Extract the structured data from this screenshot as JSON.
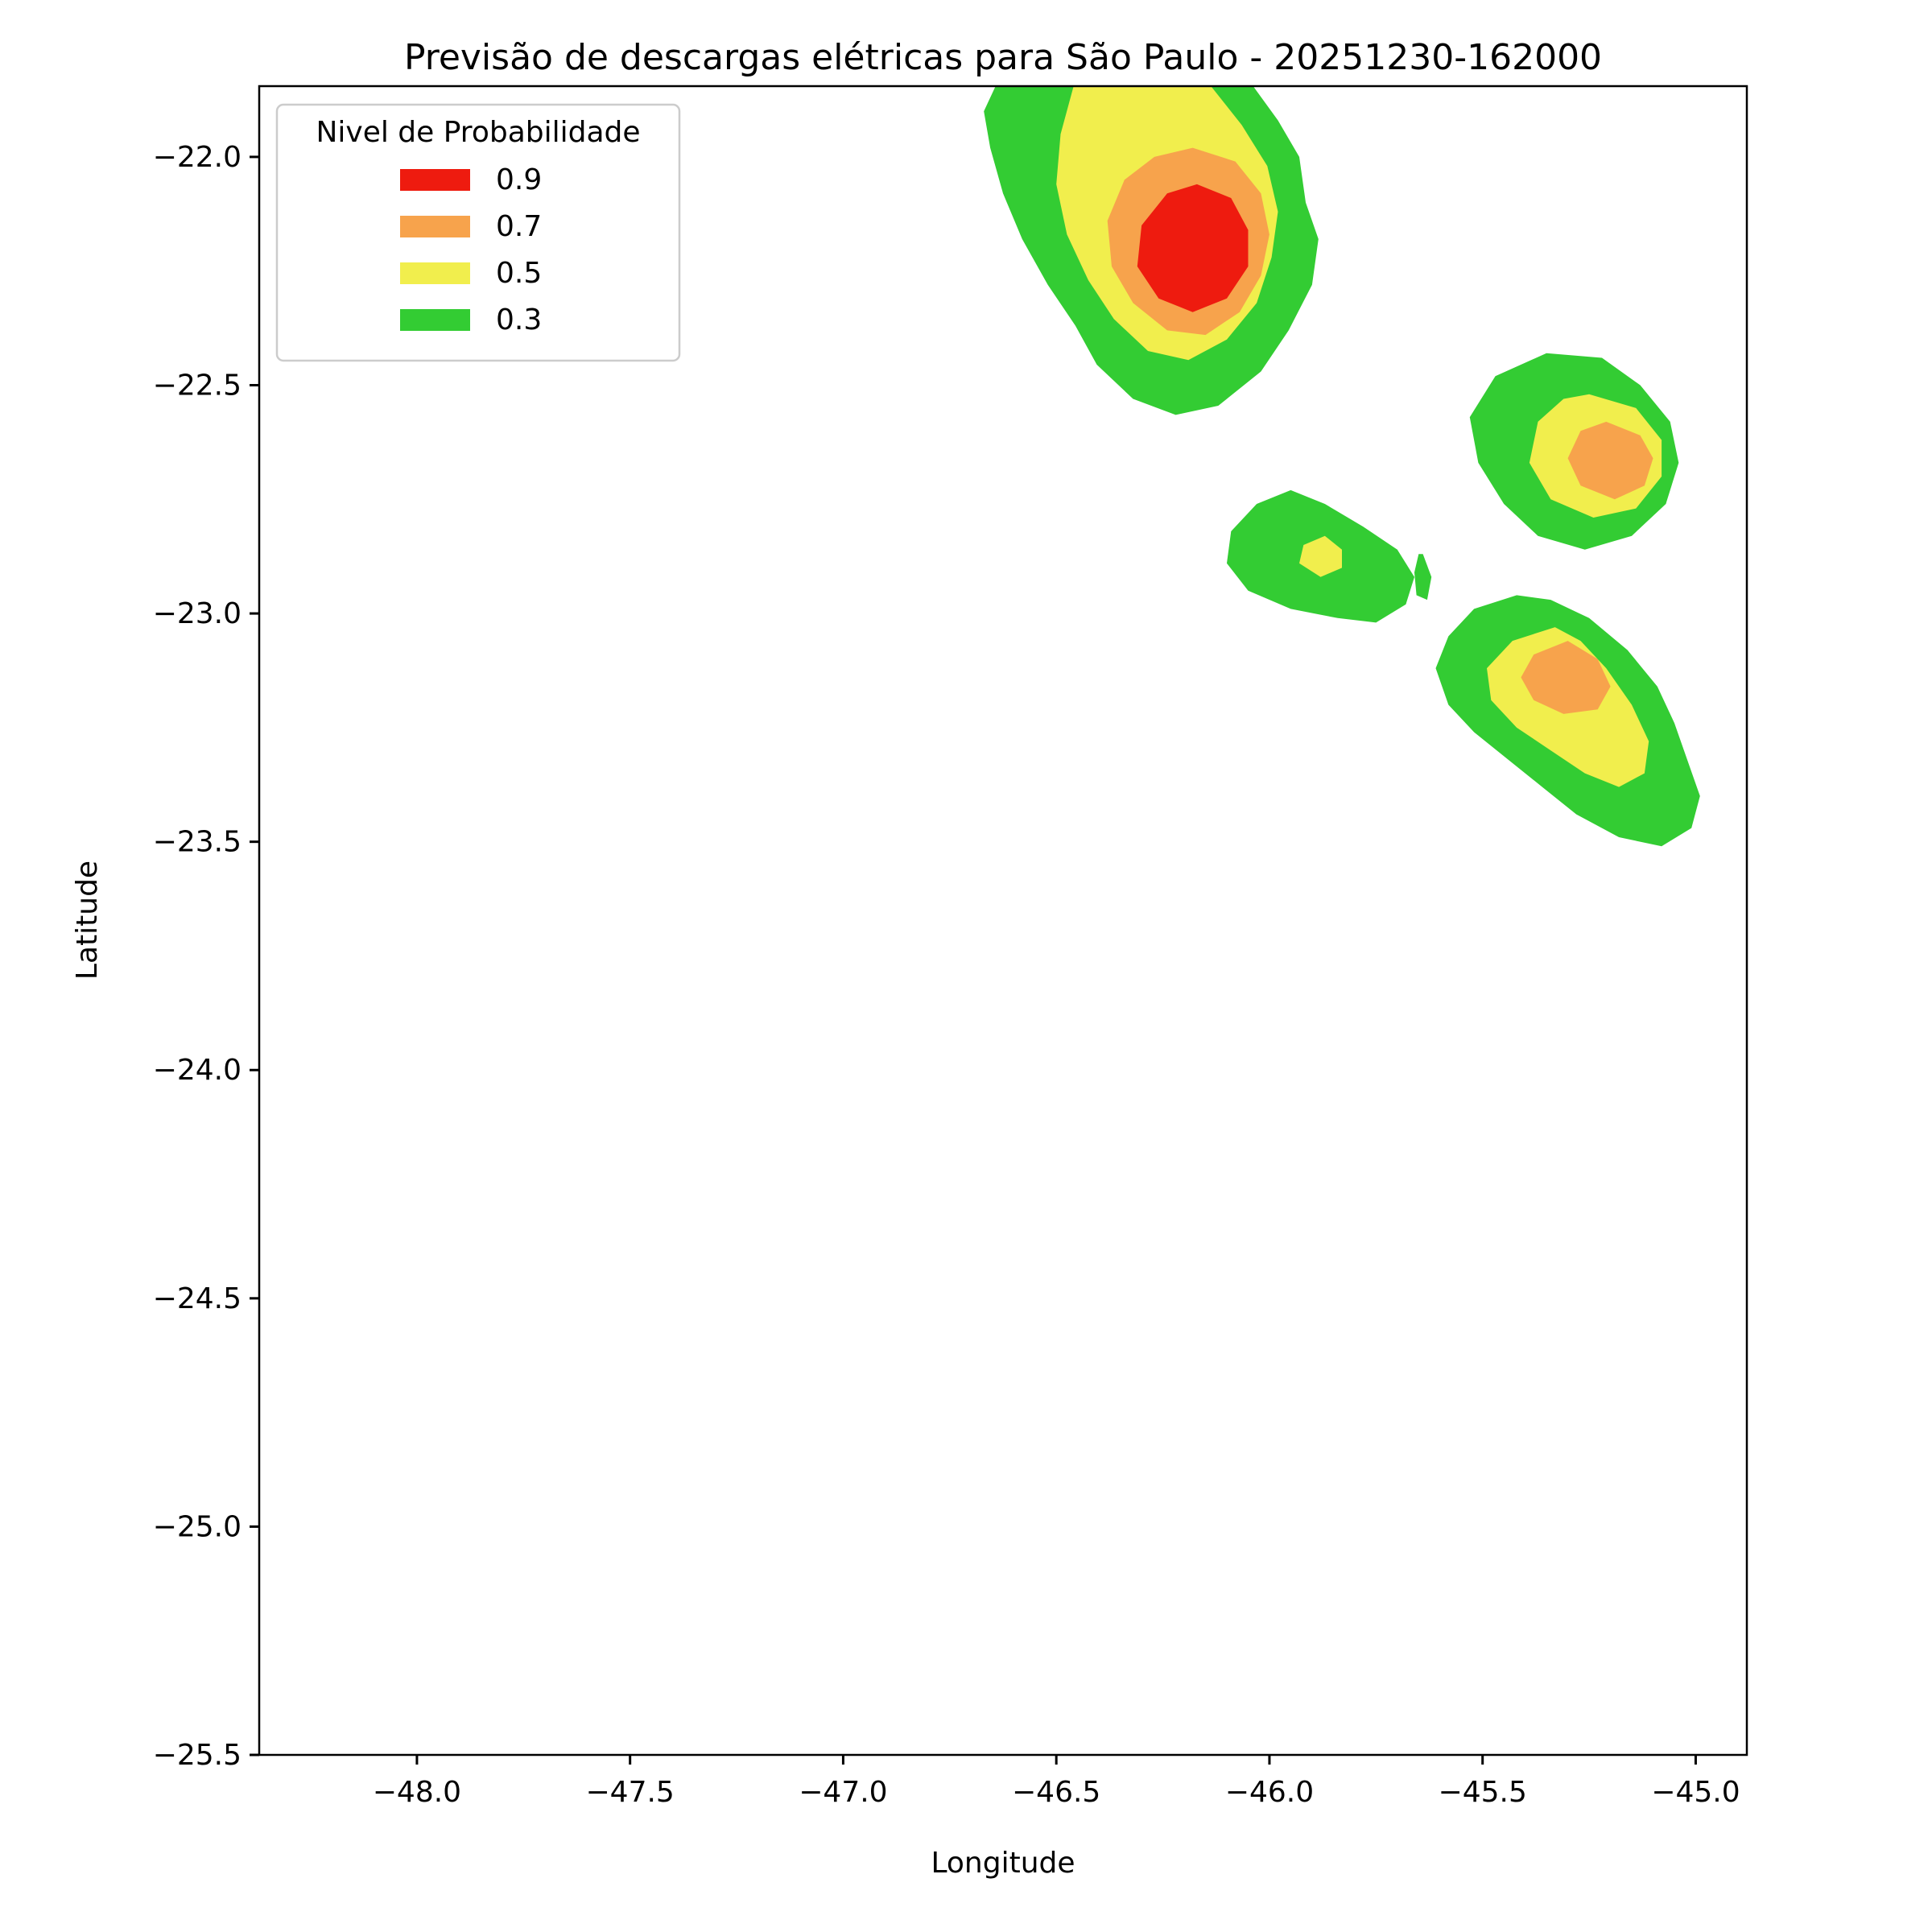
{
  "figure": {
    "background": "#ffffff"
  },
  "chart_data": {
    "type": "contour",
    "title": "Previsão de descargas elétricas para São Paulo - 20251230-162000",
    "xlabel": "Longitude",
    "ylabel": "Latitude",
    "xlim": [
      -48.37,
      -44.88
    ],
    "ylim": [
      -25.5,
      -21.845
    ],
    "xticks": [
      -48.0,
      -47.5,
      -47.0,
      -46.5,
      -46.0,
      -45.5,
      -45.0
    ],
    "xtick_labels": [
      "−48.0",
      "−47.5",
      "−47.0",
      "−46.5",
      "−46.0",
      "−45.5",
      "−45.0"
    ],
    "yticks": [
      -22.0,
      -22.5,
      -23.0,
      -23.5,
      -24.0,
      -24.5,
      -25.0,
      -25.5
    ],
    "ytick_labels": [
      "−22.0",
      "−22.5",
      "−23.0",
      "−23.5",
      "−24.0",
      "−24.5",
      "−25.0",
      "−25.5"
    ],
    "grid": false,
    "levels": [
      0.3,
      0.5,
      0.7,
      0.9
    ],
    "legend": {
      "title": "Nivel de Probabilidade",
      "position": "upper left",
      "entries": [
        {
          "label": "0.9",
          "level": 0.9,
          "color": "#EE1B0F"
        },
        {
          "label": "0.7",
          "level": 0.7,
          "color": "#F7A34C"
        },
        {
          "label": "0.5",
          "level": 0.5,
          "color": "#F1EE4D"
        },
        {
          "label": "0.3",
          "level": 0.3,
          "color": "#33CC33"
        }
      ]
    },
    "regions": [
      {
        "name": "north-cell-p30",
        "level": 0.3,
        "color": "#33CC33",
        "points": [
          [
            -46.05,
            -21.83
          ],
          [
            -45.98,
            -21.92
          ],
          [
            -45.93,
            -22.0
          ],
          [
            -45.915,
            -22.1
          ],
          [
            -45.885,
            -22.18
          ],
          [
            -45.9,
            -22.28
          ],
          [
            -45.955,
            -22.38
          ],
          [
            -46.02,
            -22.47
          ],
          [
            -46.12,
            -22.545
          ],
          [
            -46.22,
            -22.565
          ],
          [
            -46.32,
            -22.53
          ],
          [
            -46.405,
            -22.455
          ],
          [
            -46.455,
            -22.37
          ],
          [
            -46.52,
            -22.28
          ],
          [
            -46.58,
            -22.18
          ],
          [
            -46.625,
            -22.08
          ],
          [
            -46.655,
            -21.98
          ],
          [
            -46.67,
            -21.9
          ],
          [
            -46.635,
            -21.83
          ]
        ]
      },
      {
        "name": "east-cell-p30",
        "level": 0.3,
        "color": "#33CC33",
        "points": [
          [
            -45.35,
            -22.43
          ],
          [
            -45.22,
            -22.44
          ],
          [
            -45.13,
            -22.5
          ],
          [
            -45.06,
            -22.58
          ],
          [
            -45.04,
            -22.67
          ],
          [
            -45.07,
            -22.76
          ],
          [
            -45.15,
            -22.83
          ],
          [
            -45.26,
            -22.86
          ],
          [
            -45.37,
            -22.83
          ],
          [
            -45.45,
            -22.76
          ],
          [
            -45.51,
            -22.67
          ],
          [
            -45.53,
            -22.57
          ],
          [
            -45.47,
            -22.48
          ]
        ]
      },
      {
        "name": "central-cell-p30",
        "level": 0.3,
        "color": "#33CC33",
        "points": [
          [
            -45.95,
            -22.73
          ],
          [
            -46.03,
            -22.76
          ],
          [
            -46.09,
            -22.82
          ],
          [
            -46.1,
            -22.89
          ],
          [
            -46.05,
            -22.95
          ],
          [
            -45.95,
            -22.99
          ],
          [
            -45.84,
            -23.01
          ],
          [
            -45.75,
            -23.02
          ],
          [
            -45.68,
            -22.98
          ],
          [
            -45.66,
            -22.92
          ],
          [
            -45.7,
            -22.86
          ],
          [
            -45.78,
            -22.81
          ],
          [
            -45.87,
            -22.76
          ]
        ]
      },
      {
        "name": "central-sliver-p30",
        "level": 0.3,
        "color": "#33CC33",
        "points": [
          [
            -45.64,
            -22.87
          ],
          [
            -45.62,
            -22.92
          ],
          [
            -45.63,
            -22.97
          ],
          [
            -45.655,
            -22.96
          ],
          [
            -45.66,
            -22.91
          ],
          [
            -45.65,
            -22.87
          ]
        ]
      },
      {
        "name": "southeast-cell-p30",
        "level": 0.3,
        "color": "#33CC33",
        "points": [
          [
            -45.42,
            -22.96
          ],
          [
            -45.52,
            -22.99
          ],
          [
            -45.58,
            -23.05
          ],
          [
            -45.61,
            -23.12
          ],
          [
            -45.58,
            -23.2
          ],
          [
            -45.52,
            -23.26
          ],
          [
            -45.44,
            -23.32
          ],
          [
            -45.36,
            -23.38
          ],
          [
            -45.28,
            -23.44
          ],
          [
            -45.18,
            -23.49
          ],
          [
            -45.08,
            -23.51
          ],
          [
            -45.01,
            -23.47
          ],
          [
            -44.99,
            -23.4
          ],
          [
            -45.02,
            -23.32
          ],
          [
            -45.05,
            -23.24
          ],
          [
            -45.09,
            -23.16
          ],
          [
            -45.16,
            -23.08
          ],
          [
            -45.25,
            -23.01
          ],
          [
            -45.34,
            -22.97
          ]
        ]
      },
      {
        "name": "north-cell-p50",
        "level": 0.5,
        "color": "#F1EE4D",
        "points": [
          [
            -46.15,
            -21.83
          ],
          [
            -46.065,
            -21.93
          ],
          [
            -46.005,
            -22.02
          ],
          [
            -45.98,
            -22.12
          ],
          [
            -45.995,
            -22.22
          ],
          [
            -46.03,
            -22.32
          ],
          [
            -46.1,
            -22.4
          ],
          [
            -46.19,
            -22.445
          ],
          [
            -46.285,
            -22.425
          ],
          [
            -46.365,
            -22.355
          ],
          [
            -46.425,
            -22.27
          ],
          [
            -46.475,
            -22.17
          ],
          [
            -46.5,
            -22.06
          ],
          [
            -46.49,
            -21.95
          ],
          [
            -46.455,
            -21.83
          ]
        ]
      },
      {
        "name": "east-cell-p50",
        "level": 0.5,
        "color": "#F1EE4D",
        "points": [
          [
            -45.25,
            -22.52
          ],
          [
            -45.14,
            -22.55
          ],
          [
            -45.08,
            -22.62
          ],
          [
            -45.08,
            -22.7
          ],
          [
            -45.14,
            -22.77
          ],
          [
            -45.24,
            -22.79
          ],
          [
            -45.34,
            -22.75
          ],
          [
            -45.39,
            -22.67
          ],
          [
            -45.37,
            -22.58
          ],
          [
            -45.31,
            -22.53
          ]
        ]
      },
      {
        "name": "central-cell-p50",
        "level": 0.5,
        "color": "#F1EE4D",
        "points": [
          [
            -45.87,
            -22.83
          ],
          [
            -45.92,
            -22.85
          ],
          [
            -45.93,
            -22.89
          ],
          [
            -45.88,
            -22.92
          ],
          [
            -45.83,
            -22.9
          ],
          [
            -45.83,
            -22.86
          ]
        ]
      },
      {
        "name": "southeast-cell-p50",
        "level": 0.5,
        "color": "#F1EE4D",
        "points": [
          [
            -45.33,
            -23.03
          ],
          [
            -45.43,
            -23.06
          ],
          [
            -45.49,
            -23.12
          ],
          [
            -45.48,
            -23.19
          ],
          [
            -45.42,
            -23.25
          ],
          [
            -45.34,
            -23.3
          ],
          [
            -45.26,
            -23.35
          ],
          [
            -45.18,
            -23.38
          ],
          [
            -45.12,
            -23.35
          ],
          [
            -45.11,
            -23.28
          ],
          [
            -45.15,
            -23.2
          ],
          [
            -45.21,
            -23.12
          ],
          [
            -45.27,
            -23.06
          ]
        ]
      },
      {
        "name": "north-cell-p70",
        "level": 0.7,
        "color": "#F7A34C",
        "points": [
          [
            -46.18,
            -21.98
          ],
          [
            -46.08,
            -22.01
          ],
          [
            -46.02,
            -22.08
          ],
          [
            -46.0,
            -22.17
          ],
          [
            -46.02,
            -22.26
          ],
          [
            -46.07,
            -22.34
          ],
          [
            -46.15,
            -22.39
          ],
          [
            -46.24,
            -22.38
          ],
          [
            -46.32,
            -22.32
          ],
          [
            -46.37,
            -22.24
          ],
          [
            -46.38,
            -22.14
          ],
          [
            -46.34,
            -22.05
          ],
          [
            -46.27,
            -22.0
          ]
        ]
      },
      {
        "name": "east-cell-p70",
        "level": 0.7,
        "color": "#F7A34C",
        "points": [
          [
            -45.21,
            -22.58
          ],
          [
            -45.13,
            -22.61
          ],
          [
            -45.1,
            -22.66
          ],
          [
            -45.12,
            -22.72
          ],
          [
            -45.19,
            -22.75
          ],
          [
            -45.27,
            -22.72
          ],
          [
            -45.3,
            -22.66
          ],
          [
            -45.27,
            -22.6
          ]
        ]
      },
      {
        "name": "southeast-cell-p70",
        "level": 0.7,
        "color": "#F7A34C",
        "points": [
          [
            -45.3,
            -23.06
          ],
          [
            -45.38,
            -23.09
          ],
          [
            -45.41,
            -23.14
          ],
          [
            -45.38,
            -23.19
          ],
          [
            -45.31,
            -23.22
          ],
          [
            -45.23,
            -23.21
          ],
          [
            -45.2,
            -23.16
          ],
          [
            -45.23,
            -23.1
          ]
        ]
      },
      {
        "name": "north-cell-p90",
        "level": 0.9,
        "color": "#EE1B0F",
        "points": [
          [
            -46.17,
            -22.06
          ],
          [
            -46.09,
            -22.09
          ],
          [
            -46.05,
            -22.16
          ],
          [
            -46.05,
            -22.24
          ],
          [
            -46.1,
            -22.31
          ],
          [
            -46.18,
            -22.34
          ],
          [
            -46.26,
            -22.31
          ],
          [
            -46.31,
            -22.24
          ],
          [
            -46.3,
            -22.15
          ],
          [
            -46.24,
            -22.08
          ]
        ]
      }
    ]
  }
}
